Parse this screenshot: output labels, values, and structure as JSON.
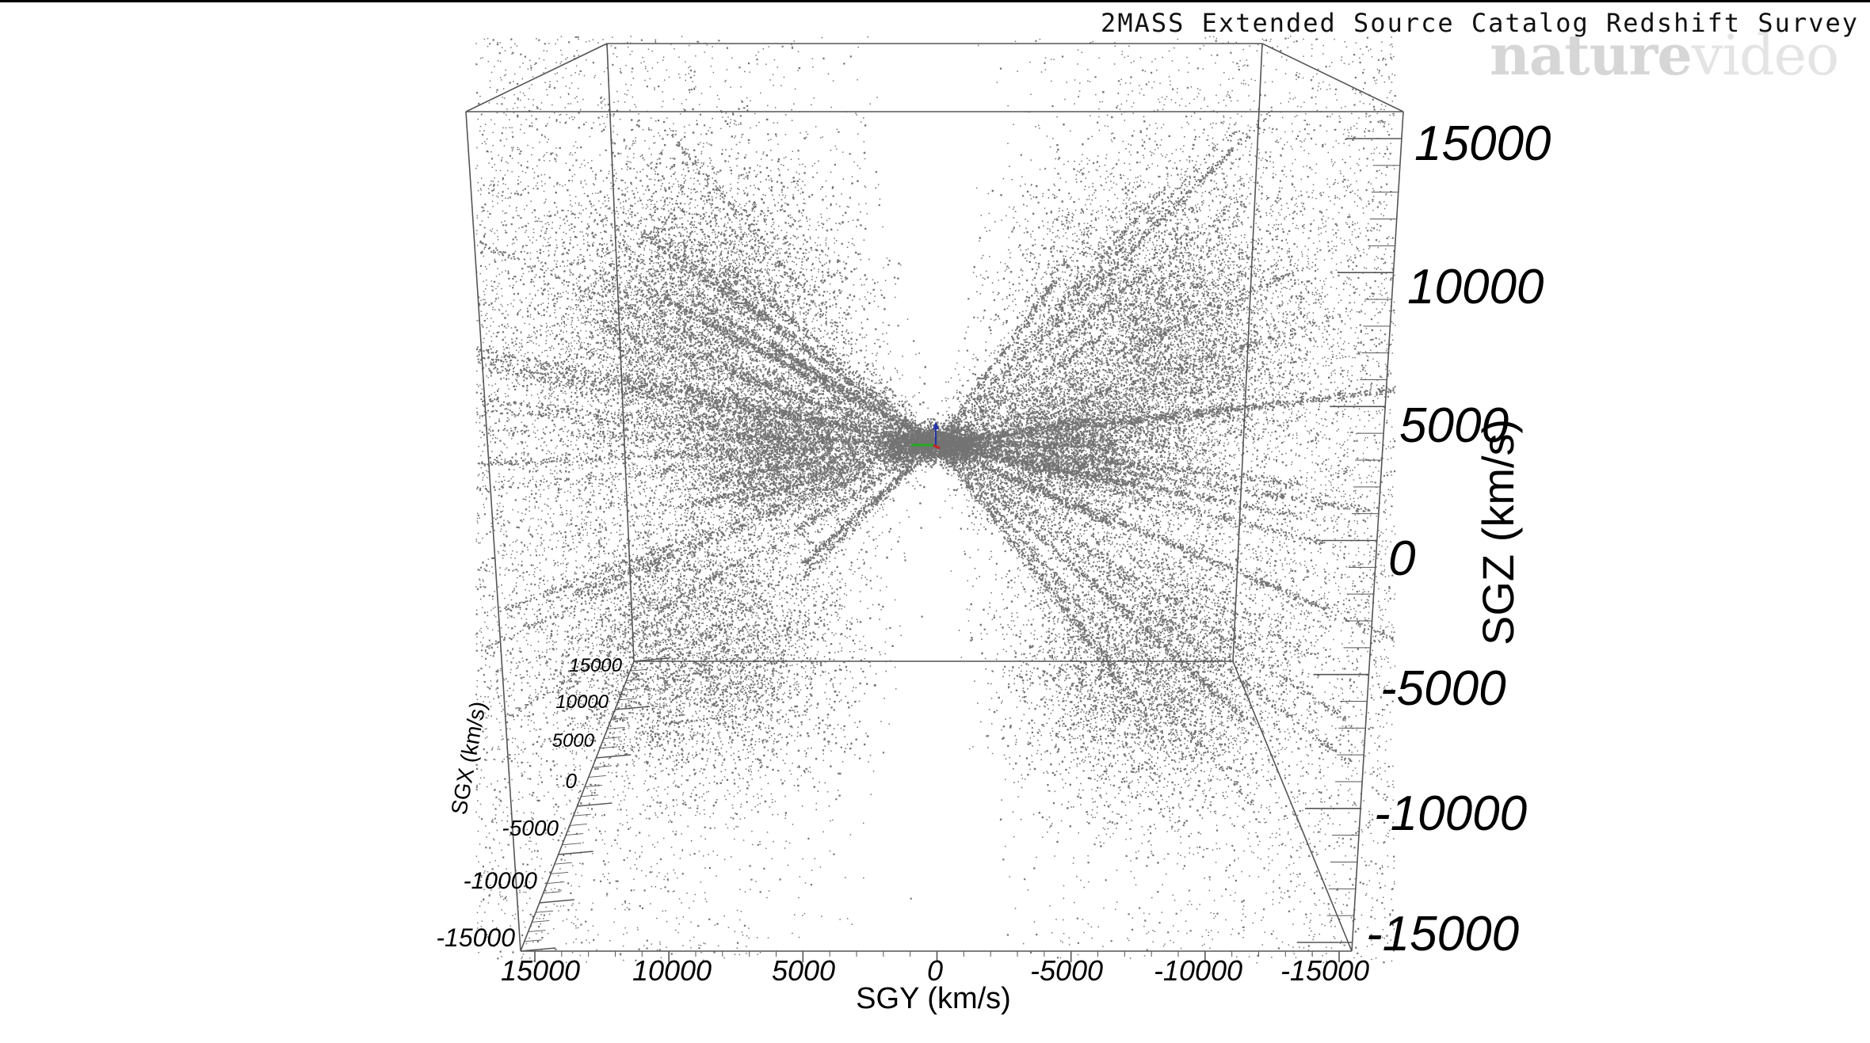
{
  "header": {
    "survey_title": "2MASS Extended Source Catalog Redshift Survey",
    "watermark_part1": "nature",
    "watermark_part2": "video"
  },
  "chart_data": {
    "type": "scatter",
    "title": "2MASS Extended Source Catalog Redshift Survey",
    "projection": "3d",
    "axes": {
      "x": {
        "label": "SGY (km/s)",
        "range": [
          15000,
          -15000
        ],
        "ticks": [
          "15000",
          "10000",
          "5000",
          "0",
          "-5000",
          "-10000",
          "-15000"
        ]
      },
      "y": {
        "label": "SGZ (km/s)",
        "range": [
          -15000,
          15000
        ],
        "ticks": [
          "15000",
          "10000",
          "5000",
          "0",
          "-5000",
          "-10000",
          "-15000"
        ]
      },
      "depth": {
        "label": "SGX (km/s)",
        "range": [
          -15000,
          15000
        ],
        "ticks": [
          "15000",
          "10000",
          "5000",
          "0",
          "-5000",
          "-10000",
          "-15000"
        ]
      }
    },
    "point_color": "#000000",
    "box_color": "#555555",
    "grid": false,
    "legend": "none"
  }
}
